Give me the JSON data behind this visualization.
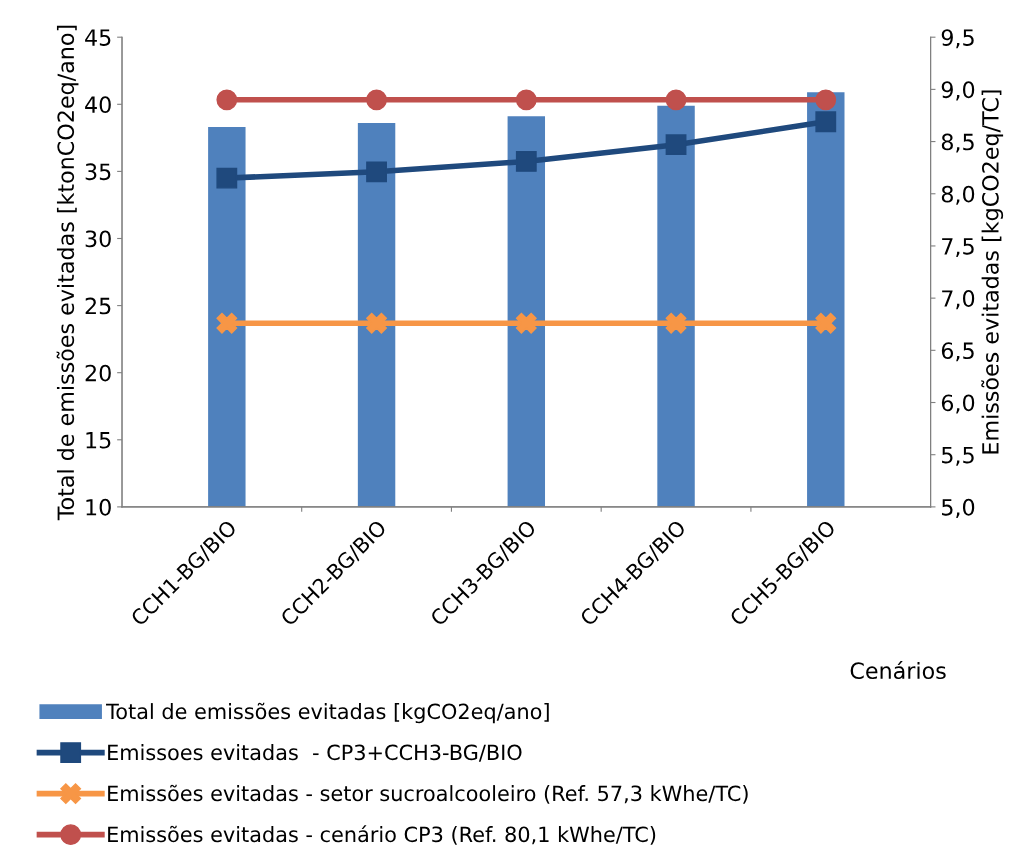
{
  "chart_data": {
    "type": "bar",
    "categories": [
      "CCH1-BG/BIO",
      "CCH2-BG/BIO",
      "CCH3-BG/BIO",
      "CCH4-BG/BIO",
      "CCH5-BG/BIO"
    ],
    "xlabel": "Cenários",
    "ylabel": "Total de emissões evitadas [ktonCO2eq/ano]",
    "y2label": "Emissões evitadas [kgCO2eq/TC]",
    "ylim": [
      10,
      45
    ],
    "yticks": [
      10,
      15,
      20,
      25,
      30,
      35,
      40,
      45
    ],
    "y2lim": [
      5.0,
      9.5
    ],
    "y2ticks": [
      {
        "value": 5.0,
        "label": "5,0"
      },
      {
        "value": 5.5,
        "label": "5,5"
      },
      {
        "value": 6.0,
        "label": "6,0"
      },
      {
        "value": 6.5,
        "label": "6,5"
      },
      {
        "value": 7.0,
        "label": "7,0"
      },
      {
        "value": 7.5,
        "label": "7,5"
      },
      {
        "value": 8.0,
        "label": "8,0"
      },
      {
        "value": 8.5,
        "label": "8,5"
      },
      {
        "value": 9.0,
        "label": "9,0"
      },
      {
        "value": 9.5,
        "label": "9,5"
      }
    ],
    "grid": false,
    "legend": "bottom",
    "series": [
      {
        "name": "Total de emissões evitadas [kgCO2eq/ano]",
        "color": "#4f81bd",
        "values": [
          38.3,
          38.6,
          39.1,
          39.9,
          40.9
        ]
      },
      {
        "name": "Emissoes evitadas  - CP3+CCH3-BG/BIO",
        "type": "line",
        "axis": "y2",
        "marker": "square",
        "color": "#1f497d",
        "values": [
          8.15,
          8.21,
          8.31,
          8.47,
          8.69
        ]
      },
      {
        "name": "Emissões evitadas - setor sucroalcooleiro (Ref. 57,3 kWhe/TC)",
        "type": "line",
        "axis": "y2",
        "marker": "cross",
        "color": "#f79646",
        "values": [
          6.76,
          6.76,
          6.76,
          6.76,
          6.76
        ]
      },
      {
        "name": "Emissões evitadas - cenário CP3 (Ref. 80,1 kWhe/TC)",
        "type": "line",
        "axis": "y2",
        "marker": "circle",
        "color": "#c0504d",
        "values": [
          8.9,
          8.9,
          8.9,
          8.9,
          8.9
        ]
      }
    ]
  }
}
